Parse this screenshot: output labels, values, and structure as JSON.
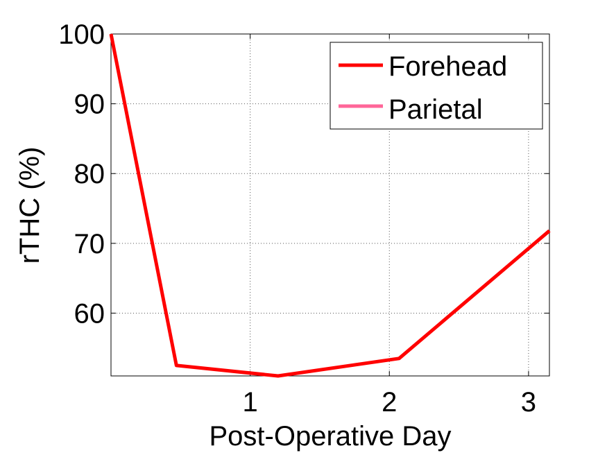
{
  "chart_data": {
    "type": "line",
    "title": "",
    "xlabel": "Post-Operative Day",
    "ylabel": "rTHC (%)",
    "xlim": [
      0,
      3.15
    ],
    "ylim": [
      51,
      100
    ],
    "xticks": [
      1,
      2,
      3
    ],
    "yticks": [
      60,
      70,
      80,
      90,
      100
    ],
    "grid": true,
    "legend_position": "top-right",
    "series": [
      {
        "name": "Forehead",
        "color": "#ff0000",
        "x": [
          0,
          0.47,
          1.2,
          2.07,
          3.15
        ],
        "y": [
          100,
          52.5,
          51,
          53.5,
          71.8
        ]
      },
      {
        "name": "Parietal",
        "color": "#ff6699",
        "x": [],
        "y": []
      }
    ]
  }
}
